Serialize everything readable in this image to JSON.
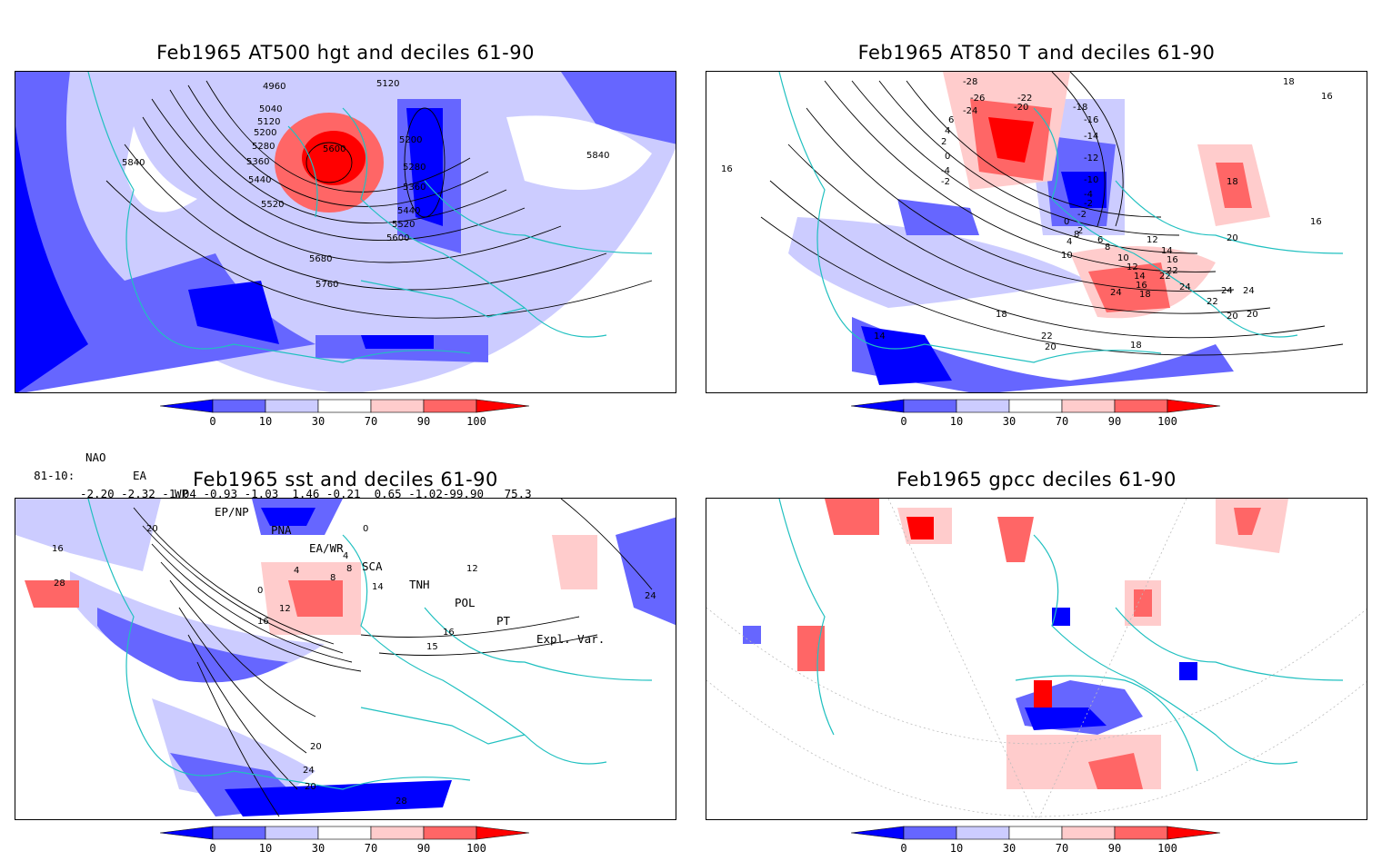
{
  "panels": [
    {
      "id": "hgt",
      "title": "Feb1965 AT500 hgt and deciles 61-90",
      "contour_labels": [
        "4960",
        "5040",
        "5120",
        "5200",
        "5280",
        "5360",
        "5440",
        "5520",
        "5600",
        "5680",
        "5760",
        "5840",
        "5120",
        "5200",
        "5280",
        "5360",
        "5440",
        "5520",
        "5600",
        "5840"
      ]
    },
    {
      "id": "t850",
      "title": "Feb1965 AT850 T and deciles 61-90",
      "contour_labels": [
        "-28",
        "-26",
        "-24",
        "-22",
        "-20",
        "-18",
        "-16",
        "-14",
        "-12",
        "-10",
        "-4",
        "-2",
        "0",
        "2",
        "4",
        "6",
        "8",
        "10",
        "12",
        "14",
        "16",
        "18",
        "20",
        "22",
        "24",
        "-2",
        "-4",
        "-2",
        "0",
        "2",
        "4",
        "6",
        "8",
        "10",
        "12",
        "14",
        "16",
        "18",
        "16",
        "16",
        "16",
        "18",
        "14",
        "18",
        "18",
        "20",
        "20",
        "20",
        "22",
        "22",
        "22",
        "24",
        "24",
        "24"
      ]
    },
    {
      "id": "sst",
      "title": "Feb1965 sst and deciles 61-90",
      "contour_labels": [
        "0",
        "4",
        "8",
        "12",
        "16",
        "20",
        "24",
        "28",
        "16",
        "15",
        "14",
        "20",
        "0",
        "4",
        "8",
        "12",
        "16",
        "20",
        "24",
        "28"
      ]
    },
    {
      "id": "gpcc",
      "title": "Feb1965 gpcc deciles 61-90",
      "contour_labels": []
    }
  ],
  "colorbar": {
    "ticks": [
      "0",
      "10",
      "30",
      "70",
      "90",
      "100"
    ],
    "colors": [
      "#0000ff",
      "#6666ff",
      "#ccccff",
      "#ffffff",
      "#ffcccc",
      "#ff6666",
      "#ff0000"
    ]
  },
  "teleconnections": {
    "period_label": "81-10:",
    "headers": [
      "NAO",
      "EA",
      "WP",
      "EP/NP",
      "PNA",
      "EA/WR",
      "SCA",
      "TNH",
      "POL",
      "PT",
      "Expl. Var."
    ],
    "values": "-2.20 -2.32 -1.04 -0.93 -1.03  1.46 -0.21  0.65 -1.02-99.90   75.3"
  },
  "coast_color": "#20c0c0"
}
